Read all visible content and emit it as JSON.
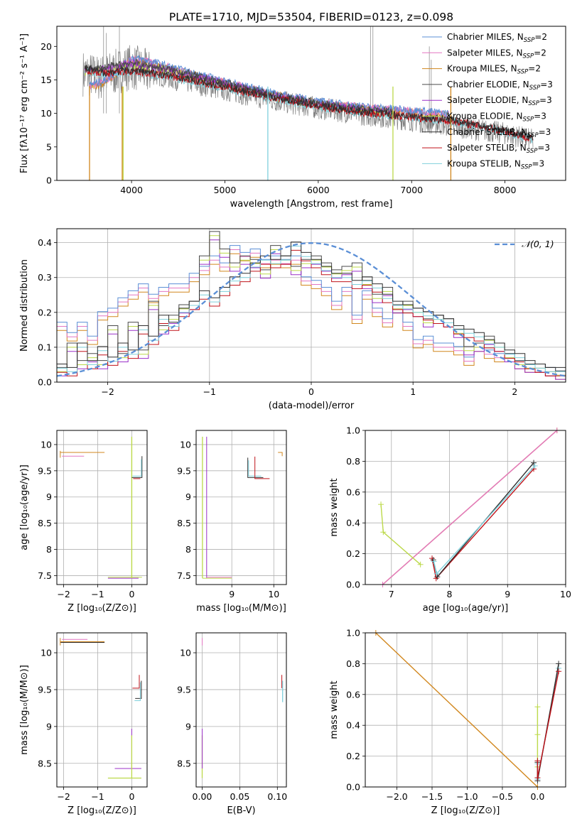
{
  "figure": {
    "title": "PLATE=1710, MJD=53504, FIBERID=0123, z=0.098"
  },
  "chart_data": [
    {
      "id": "spectrum",
      "type": "line",
      "xlabel": "wavelength [Angstrom, rest frame]",
      "ylabel": "Flux [fλ10⁻¹⁷ erg cm⁻² s⁻¹ A⁻¹]",
      "xlim": [
        3200,
        8650
      ],
      "ylim": [
        0,
        23
      ],
      "xticks": [
        4000,
        5000,
        6000,
        7000,
        8000
      ],
      "yticks": [
        0,
        5,
        10,
        15,
        20
      ],
      "grid": false,
      "legend_position": "top-right",
      "legend": [
        {
          "label": "Chabrier MILES, N",
          "sub": "SSP",
          "suffix": "=2",
          "color": "#5b8fd6"
        },
        {
          "label": "Salpeter MILES, N",
          "sub": "SSP",
          "suffix": "=2",
          "color": "#e377c2"
        },
        {
          "label": "Kroupa MILES, N",
          "sub": "SSP",
          "suffix": "=2",
          "color": "#d1871e"
        },
        {
          "label": "Chabrier ELODIE, N",
          "sub": "SSP",
          "suffix": "=3",
          "color": "#4a4a4a"
        },
        {
          "label": "Salpeter ELODIE, N",
          "sub": "SSP",
          "suffix": "=3",
          "color": "#9b30c8"
        },
        {
          "label": "Kroupa ELODIE, N",
          "sub": "SSP",
          "suffix": "=3",
          "color": "#bcd94a"
        },
        {
          "label": "Chabrier STELIB, N",
          "sub": "SSP",
          "suffix": "=3",
          "color": "#2f2f2f"
        },
        {
          "label": "Salpeter STELIB, N",
          "sub": "SSP",
          "suffix": "=3",
          "color": "#c0131a"
        },
        {
          "label": "Kroupa STELIB, N",
          "sub": "SSP",
          "suffix": "=3",
          "color": "#7fd0dc"
        }
      ],
      "data_envelope": {
        "x": [
          3500,
          3650,
          3800,
          4000,
          4200,
          4500,
          5000,
          5500,
          6000,
          6500,
          7000,
          7400,
          8000,
          8300
        ],
        "y": [
          16.0,
          15.3,
          16.0,
          17.0,
          16.0,
          15.0,
          13.5,
          12.0,
          10.8,
          9.8,
          9.0,
          8.2,
          7.0,
          6.0
        ]
      },
      "models": {
        "miles": {
          "x": [
            3550,
            3700,
            3900,
            4000,
            4200,
            4500,
            5000,
            5500,
            6000,
            6500,
            7000,
            7400
          ],
          "y": [
            14.0,
            14.5,
            16.5,
            18.0,
            17.5,
            16.3,
            14.5,
            12.8,
            11.5,
            10.7,
            10.2,
            9.7
          ]
        },
        "elodie": {
          "x": [
            3500,
            3700,
            4000,
            4500,
            5000,
            5500,
            6000,
            6500,
            6800
          ],
          "y": [
            16.2,
            16.5,
            17.3,
            16.0,
            14.2,
            12.5,
            11.2,
            10.3,
            10.0
          ]
        },
        "stelib": {
          "x": [
            3500,
            3700,
            4000,
            4500,
            5000,
            5500,
            6000,
            6500,
            7000,
            7500,
            8000,
            8300
          ],
          "y": [
            16.4,
            15.8,
            16.2,
            15.2,
            13.7,
            12.2,
            10.9,
            9.9,
            9.3,
            8.6,
            7.2,
            6.1
          ]
        }
      }
    },
    {
      "id": "residuals",
      "type": "area",
      "xlabel": "(data-model)/error",
      "ylabel": "Normed distribution",
      "xlim": [
        -2.5,
        2.5
      ],
      "ylim": [
        0,
        0.44
      ],
      "xticks": [
        -2,
        -1,
        0,
        1,
        2
      ],
      "yticks": [
        0.0,
        0.1,
        0.2,
        0.3,
        0.4
      ],
      "grid": true,
      "legend_position": "top-right",
      "legend": [
        {
          "label": "𝒩(0, 1)",
          "color": "#5b8fd6",
          "style": "dashed"
        }
      ],
      "bin_edges_range": [
        -2.5,
        2.5
      ],
      "bin_count": 50,
      "histograms": {
        "miles": [
          0.16,
          0.13,
          0.16,
          0.12,
          0.19,
          0.2,
          0.23,
          0.25,
          0.27,
          0.24,
          0.26,
          0.27,
          0.27,
          0.3,
          0.32,
          0.35,
          0.33,
          0.38,
          0.36,
          0.37,
          0.34,
          0.35,
          0.34,
          0.35,
          0.29,
          0.28,
          0.26,
          0.22,
          0.26,
          0.18,
          0.25,
          0.2,
          0.17,
          0.21,
          0.16,
          0.11,
          0.12,
          0.1,
          0.1,
          0.09,
          0.06,
          0.1,
          0.08,
          0.07,
          0.07,
          0.05,
          0.04,
          0.04,
          0.03,
          0.02
        ],
        "elodie": [
          0.03,
          0.1,
          0.05,
          0.07,
          0.05,
          0.15,
          0.07,
          0.16,
          0.08,
          0.22,
          0.15,
          0.18,
          0.21,
          0.22,
          0.35,
          0.42,
          0.37,
          0.33,
          0.35,
          0.34,
          0.31,
          0.38,
          0.35,
          0.32,
          0.34,
          0.35,
          0.33,
          0.31,
          0.32,
          0.33,
          0.28,
          0.24,
          0.26,
          0.21,
          0.22,
          0.2,
          0.17,
          0.18,
          0.17,
          0.14,
          0.09,
          0.1,
          0.12,
          0.1,
          0.07,
          0.05,
          0.04,
          0.04,
          0.03,
          0.02
        ],
        "stelib": [
          0.04,
          0.03,
          0.1,
          0.05,
          0.09,
          0.06,
          0.1,
          0.08,
          0.15,
          0.12,
          0.18,
          0.16,
          0.2,
          0.22,
          0.25,
          0.23,
          0.26,
          0.29,
          0.3,
          0.33,
          0.35,
          0.34,
          0.35,
          0.39,
          0.36,
          0.34,
          0.32,
          0.3,
          0.3,
          0.28,
          0.29,
          0.27,
          0.24,
          0.22,
          0.21,
          0.2,
          0.19,
          0.18,
          0.17,
          0.15,
          0.14,
          0.13,
          0.11,
          0.1,
          0.08,
          0.07,
          0.05,
          0.04,
          0.03,
          0.03
        ]
      },
      "normal_curve": {
        "mean": 0,
        "sd": 1
      }
    },
    {
      "id": "age-vs-Z",
      "type": "scatter",
      "xlabel": "Z [log₁₀(Z/Z⊙)]",
      "ylabel": "age  [log₁₀(age/yr)]",
      "xlim": [
        -2.2,
        0.45
      ],
      "ylim": [
        7.33,
        10.27
      ],
      "xticks": [
        -2,
        -1,
        0
      ],
      "yticks": [
        7.5,
        8.0,
        8.5,
        9.0,
        9.5,
        10.0
      ],
      "grid": true
    },
    {
      "id": "age-vs-mass",
      "type": "scatter",
      "xlabel": "mass [log₁₀(M/M⊙)]",
      "xlim": [
        8.15,
        10.3
      ],
      "ylim": [
        7.33,
        10.27
      ],
      "xticks": [
        9,
        10
      ],
      "yticks": [
        7.5,
        8.0,
        8.5,
        9.0,
        9.5,
        10.0
      ],
      "grid": true
    },
    {
      "id": "massweight-vs-age",
      "type": "line",
      "xlabel": "age  [log₁₀(age/yr)]",
      "ylabel": "mass weight",
      "xlim": [
        6.55,
        10.0
      ],
      "ylim": [
        0.0,
        1.0
      ],
      "xticks": [
        7,
        8,
        9,
        10
      ],
      "yticks": [
        0.0,
        0.2,
        0.4,
        0.6,
        0.8,
        1.0
      ],
      "grid": true,
      "series": [
        {
          "color": "#d1871e",
          "x": [
            6.85,
            9.85
          ],
          "y": [
            0.0,
            1.0
          ]
        },
        {
          "color": "#e377c2",
          "x": [
            6.85,
            9.85
          ],
          "y": [
            0.0,
            1.0
          ]
        },
        {
          "color": "#bcd94a",
          "x": [
            6.82,
            6.86,
            7.5
          ],
          "y": [
            0.52,
            0.34,
            0.13
          ]
        },
        {
          "color": "#c0131a",
          "x": [
            7.7,
            7.77,
            9.45
          ],
          "y": [
            0.17,
            0.04,
            0.75
          ]
        },
        {
          "color": "#2f2f2f",
          "x": [
            7.72,
            7.79,
            9.45
          ],
          "y": [
            0.16,
            0.05,
            0.79
          ]
        },
        {
          "color": "#7fd0dc",
          "x": [
            7.73,
            7.78,
            9.47
          ],
          "y": [
            0.15,
            0.07,
            0.77
          ]
        }
      ]
    },
    {
      "id": "mass-vs-Z",
      "type": "scatter",
      "xlabel": "Z [log₁₀(Z/Z⊙)]",
      "ylabel": "mass [log₁₀(M/M⊙)]",
      "xlim": [
        -2.2,
        0.45
      ],
      "ylim": [
        8.18,
        10.27
      ],
      "xticks": [
        -2,
        -1,
        0
      ],
      "yticks": [
        8.5,
        9.0,
        9.5,
        10.0
      ],
      "grid": true
    },
    {
      "id": "mass-vs-EBV",
      "type": "scatter",
      "xlabel": "E(B-V)",
      "xlim": [
        -0.008,
        0.112
      ],
      "ylim": [
        8.18,
        10.27
      ],
      "xticks": [
        0.0,
        0.05,
        0.1
      ],
      "xticklabels": [
        "0.00",
        "0.05",
        "0.10"
      ],
      "yticks": [
        8.5,
        9.0,
        9.5,
        10.0
      ],
      "grid": true
    },
    {
      "id": "massweight-vs-Z",
      "type": "line",
      "xlabel": "Z [log₁₀(Z/Z⊙)]",
      "ylabel": "mass weight",
      "xlim": [
        -2.45,
        0.4
      ],
      "ylim": [
        0.0,
        1.0
      ],
      "xticks": [
        -2.0,
        -1.5,
        -1.0,
        -0.5,
        0.0
      ],
      "xticklabels": [
        "−2.0",
        "−1.5",
        "−1.0",
        "−0.5",
        "0.0"
      ],
      "yticks": [
        0.0,
        0.2,
        0.4,
        0.6,
        0.8,
        1.0
      ],
      "grid": true,
      "series": [
        {
          "color": "#d1871e",
          "x": [
            -2.3,
            0.0
          ],
          "y": [
            1.0,
            0.0
          ]
        },
        {
          "color": "#bcd94a",
          "x": [
            0.0,
            0.0,
            0.0
          ],
          "y": [
            0.52,
            0.34,
            0.13
          ]
        },
        {
          "color": "#7fd0dc",
          "x": [
            0.0,
            0.0,
            0.3
          ],
          "y": [
            0.15,
            0.05,
            0.77
          ]
        },
        {
          "color": "#2f2f2f",
          "x": [
            0.0,
            0.0,
            0.3
          ],
          "y": [
            0.16,
            0.04,
            0.8
          ]
        },
        {
          "color": "#c0131a",
          "x": [
            0.0,
            0.0,
            0.3
          ],
          "y": [
            0.17,
            0.06,
            0.75
          ]
        }
      ]
    }
  ]
}
